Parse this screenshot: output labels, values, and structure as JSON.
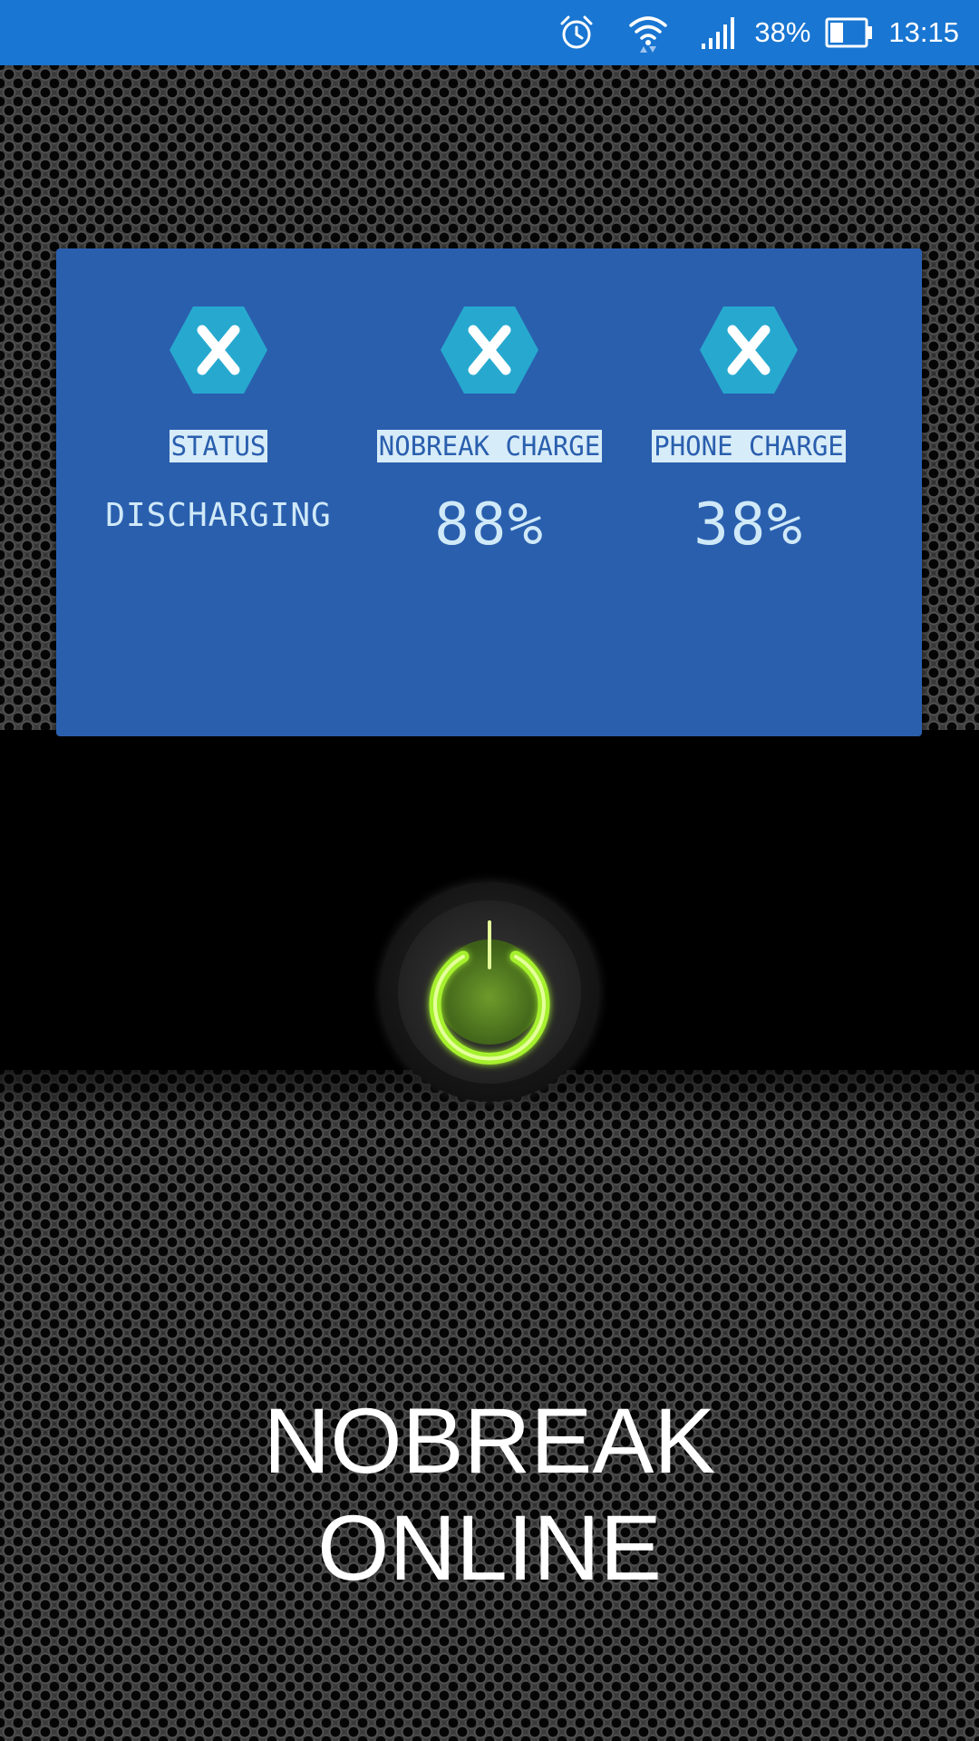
{
  "status_bar": {
    "battery_percent": "38%",
    "time": "13:15",
    "icons": [
      "alarm-icon",
      "wifi-icon",
      "signal-icon",
      "battery-icon"
    ]
  },
  "panel": {
    "columns": [
      {
        "icon": "xamarin-icon",
        "label": "STATUS",
        "value": "DISCHARGING"
      },
      {
        "icon": "xamarin-icon",
        "label": "NOBREAK CHARGE",
        "value": "88%"
      },
      {
        "icon": "xamarin-icon",
        "label": "PHONE CHARGE",
        "value": "38%"
      }
    ]
  },
  "power_button": {
    "icon": "power-icon",
    "color": "#a6f02e"
  },
  "title": {
    "line1": "NOBREAK",
    "line2": "ONLINE"
  },
  "colors": {
    "status_bar": "#1976d2",
    "panel": "#2a5fae",
    "label_bg": "#d7ecf9",
    "hex_icon": "#27a9cf"
  }
}
